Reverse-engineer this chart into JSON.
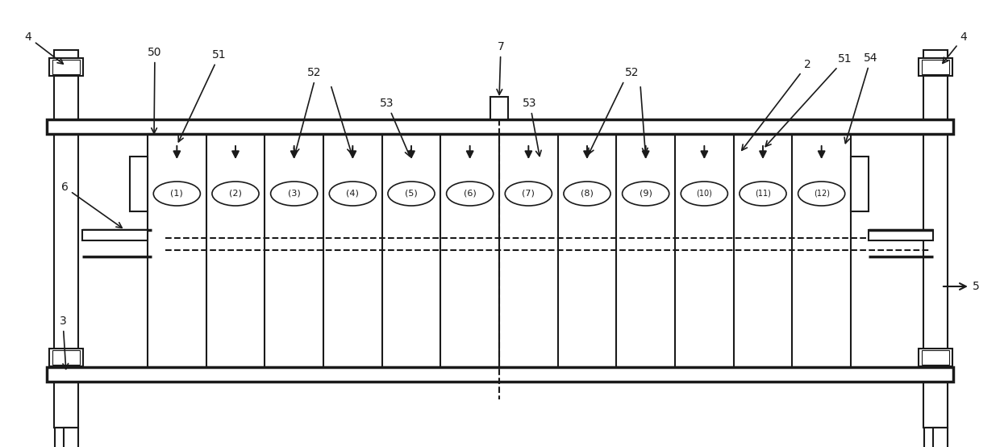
{
  "bg_color": "#ffffff",
  "line_color": "#1a1a1a",
  "lw": 1.5,
  "lw_thick": 2.5,
  "fig_width": 12.4,
  "fig_height": 5.54,
  "dpi": 100,
  "coil_labels": [
    "(1)",
    "(2)",
    "(3)",
    "(4)",
    "(5)",
    "(6)",
    "(7)",
    "(8)",
    "(9)",
    "(10)",
    "(11)",
    "(12)"
  ],
  "fs_label": 10,
  "fs_coil": 8
}
